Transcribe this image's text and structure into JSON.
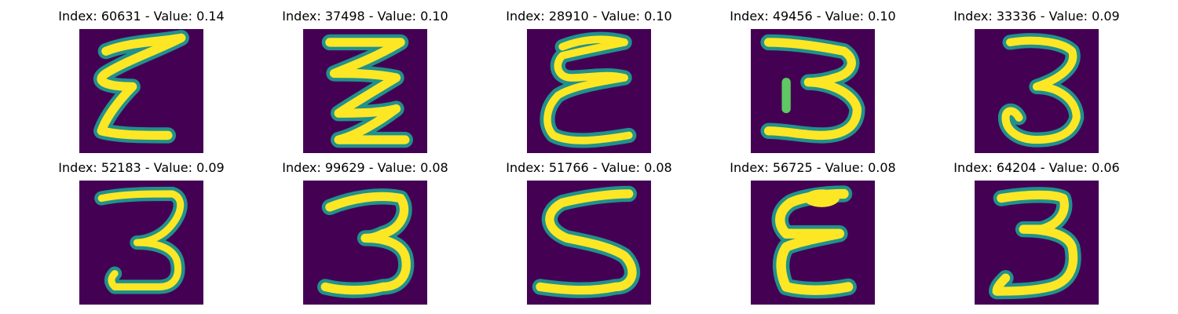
{
  "colors": {
    "background": "#440154",
    "stroke_edge": "#21918c",
    "stroke_mid": "#5ec962",
    "stroke_core": "#fde725"
  },
  "panels": [
    {
      "title": "Index: 60631 - Value: 0.14",
      "digit": "3"
    },
    {
      "title": "Index: 37498 - Value: 0.10",
      "digit": "3"
    },
    {
      "title": "Index: 28910 - Value: 0.10",
      "digit": "3"
    },
    {
      "title": "Index: 49456 - Value: 0.10",
      "digit": "3"
    },
    {
      "title": "Index: 33336 - Value: 0.09",
      "digit": "3"
    },
    {
      "title": "Index: 52183 - Value: 0.09",
      "digit": "3"
    },
    {
      "title": "Index: 99629 - Value: 0.08",
      "digit": "3"
    },
    {
      "title": "Index: 51766 - Value: 0.08",
      "digit": "3"
    },
    {
      "title": "Index: 56725 - Value: 0.08",
      "digit": "3"
    },
    {
      "title": "Index: 64204 - Value: 0.06",
      "digit": "3"
    }
  ]
}
